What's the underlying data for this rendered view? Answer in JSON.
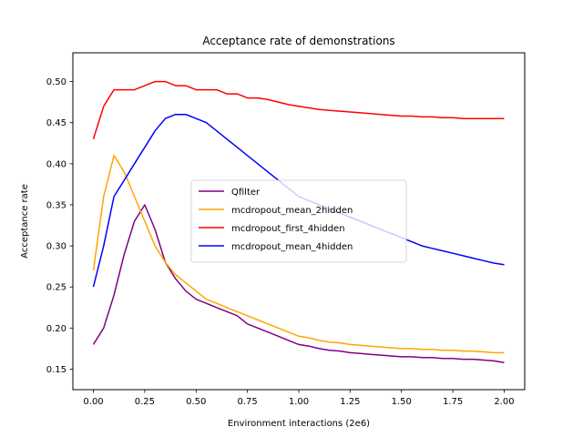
{
  "chart_data": {
    "type": "line",
    "title": "Acceptance rate of demonstrations",
    "xlabel": "Environment interactions (2e6)",
    "ylabel": "Acceptance rate",
    "xlim": [
      -0.1,
      2.1
    ],
    "ylim": [
      0.125,
      0.535
    ],
    "xticks": [
      0.0,
      0.25,
      0.5,
      0.75,
      1.0,
      1.25,
      1.5,
      1.75,
      2.0
    ],
    "xtick_labels": [
      "0.00",
      "0.25",
      "0.50",
      "0.75",
      "1.00",
      "1.25",
      "1.50",
      "1.75",
      "2.00"
    ],
    "yticks": [
      0.15,
      0.2,
      0.25,
      0.3,
      0.35,
      0.4,
      0.45,
      0.5
    ],
    "ytick_labels": [
      "0.15",
      "0.20",
      "0.25",
      "0.30",
      "0.35",
      "0.40",
      "0.45",
      "0.50"
    ],
    "grid": false,
    "legend_position": "center",
    "x": [
      0.0,
      0.05,
      0.1,
      0.15,
      0.2,
      0.25,
      0.3,
      0.35,
      0.4,
      0.45,
      0.5,
      0.55,
      0.6,
      0.65,
      0.7,
      0.75,
      0.8,
      0.85,
      0.9,
      0.95,
      1.0,
      1.05,
      1.1,
      1.15,
      1.2,
      1.25,
      1.3,
      1.35,
      1.4,
      1.45,
      1.5,
      1.55,
      1.6,
      1.65,
      1.7,
      1.75,
      1.8,
      1.85,
      1.9,
      1.95,
      2.0
    ],
    "series": [
      {
        "name": "Qfilter",
        "color": "#800080",
        "values": [
          0.18,
          0.2,
          0.24,
          0.29,
          0.33,
          0.35,
          0.32,
          0.28,
          0.26,
          0.245,
          0.235,
          0.23,
          0.225,
          0.22,
          0.215,
          0.205,
          0.2,
          0.195,
          0.19,
          0.185,
          0.18,
          0.178,
          0.175,
          0.173,
          0.172,
          0.17,
          0.169,
          0.168,
          0.167,
          0.166,
          0.165,
          0.165,
          0.164,
          0.164,
          0.163,
          0.163,
          0.162,
          0.162,
          0.161,
          0.16,
          0.158
        ]
      },
      {
        "name": "mcdropout_mean_2hidden",
        "color": "#FFA500",
        "values": [
          0.27,
          0.36,
          0.41,
          0.39,
          0.36,
          0.33,
          0.3,
          0.28,
          0.265,
          0.255,
          0.245,
          0.235,
          0.23,
          0.225,
          0.22,
          0.215,
          0.21,
          0.205,
          0.2,
          0.195,
          0.19,
          0.188,
          0.185,
          0.183,
          0.182,
          0.18,
          0.179,
          0.178,
          0.177,
          0.176,
          0.175,
          0.175,
          0.174,
          0.174,
          0.173,
          0.173,
          0.172,
          0.172,
          0.171,
          0.17,
          0.17
        ]
      },
      {
        "name": "mcdropout_first_4hidden",
        "color": "#FF0000",
        "values": [
          0.43,
          0.47,
          0.49,
          0.49,
          0.49,
          0.495,
          0.5,
          0.5,
          0.495,
          0.495,
          0.49,
          0.49,
          0.49,
          0.485,
          0.485,
          0.48,
          0.48,
          0.478,
          0.475,
          0.472,
          0.47,
          0.468,
          0.466,
          0.465,
          0.464,
          0.463,
          0.462,
          0.461,
          0.46,
          0.459,
          0.458,
          0.458,
          0.457,
          0.457,
          0.456,
          0.456,
          0.455,
          0.455,
          0.455,
          0.455,
          0.455
        ]
      },
      {
        "name": "mcdropout_mean_4hidden",
        "color": "#0000FF",
        "values": [
          0.25,
          0.3,
          0.36,
          0.38,
          0.4,
          0.42,
          0.44,
          0.455,
          0.46,
          0.46,
          0.455,
          0.45,
          0.44,
          0.43,
          0.42,
          0.41,
          0.4,
          0.39,
          0.38,
          0.37,
          0.36,
          0.355,
          0.35,
          0.345,
          0.34,
          0.335,
          0.33,
          0.325,
          0.32,
          0.315,
          0.31,
          0.305,
          0.3,
          0.297,
          0.294,
          0.291,
          0.288,
          0.285,
          0.282,
          0.279,
          0.277
        ]
      }
    ]
  }
}
